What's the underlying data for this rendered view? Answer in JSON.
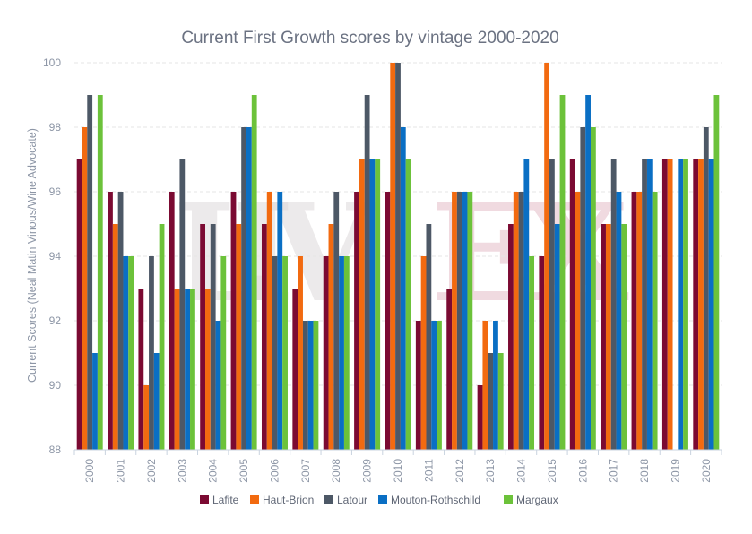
{
  "chart_data": {
    "type": "bar",
    "title": "Current First Growth scores by vintage 2000-2020",
    "xlabel": "",
    "ylabel": "Current Scores (Neal Matin Vinous/Wine Advocate)",
    "ylim": [
      88,
      100
    ],
    "yticks": [
      "88",
      "90",
      "92",
      "94",
      "96",
      "98",
      "100"
    ],
    "grid": true,
    "legend_position": "bottom-center",
    "categories": [
      "2000",
      "2001",
      "2002",
      "2003",
      "2004",
      "2005",
      "2006",
      "2007",
      "2008",
      "2009",
      "2010",
      "2011",
      "2012",
      "2013",
      "2014",
      "2015",
      "2016",
      "2017",
      "2018",
      "2019",
      "2020"
    ],
    "series": [
      {
        "name": "Lafite",
        "color": "#7b0a32",
        "values": [
          97,
          96,
          93,
          96,
          95,
          96,
          95,
          93,
          94,
          96,
          96,
          92,
          93,
          90,
          95,
          94,
          97,
          95,
          96,
          97,
          97
        ]
      },
      {
        "name": "Haut-Brion",
        "color": "#f26a10",
        "values": [
          98,
          95,
          90,
          93,
          93,
          95,
          96,
          94,
          95,
          97,
          100,
          94,
          96,
          92,
          96,
          100,
          96,
          95,
          96,
          97,
          97
        ]
      },
      {
        "name": "Latour",
        "color": "#4d5866",
        "values": [
          99,
          96,
          94,
          97,
          95,
          98,
          94,
          92,
          96,
          99,
          100,
          95,
          96,
          91,
          96,
          97,
          98,
          97,
          97,
          null,
          98
        ]
      },
      {
        "name": "Mouton-Rothschild",
        "color": "#0a6fc4",
        "values": [
          91,
          94,
          91,
          93,
          92,
          98,
          96,
          92,
          94,
          97,
          98,
          92,
          96,
          92,
          97,
          95,
          99,
          96,
          97,
          97,
          97
        ]
      },
      {
        "name": "Margaux",
        "color": "#6cc23a",
        "values": [
          99,
          94,
          95,
          93,
          94,
          99,
          94,
          92,
          94,
          97,
          97,
          92,
          96,
          91,
          94,
          99,
          98,
          95,
          96,
          97,
          99
        ]
      }
    ]
  },
  "watermark": {
    "text": "LIVEX"
  }
}
